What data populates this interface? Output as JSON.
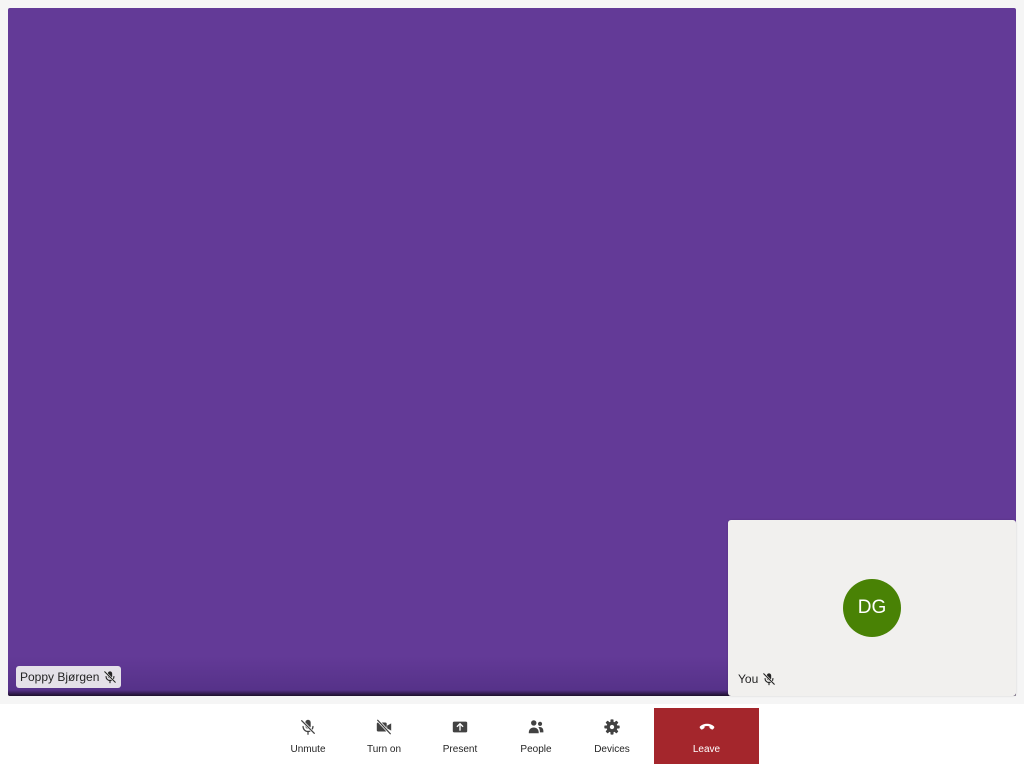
{
  "main_participant": {
    "name": "Poppy Bjørgen",
    "background_color": "#633a97",
    "mic_icon": "mic-off-icon"
  },
  "self_view": {
    "label": "You",
    "initials": "DG",
    "avatar_color": "#498205",
    "mic_icon": "mic-off-icon"
  },
  "toolbar": {
    "unmute_label": "Unmute",
    "camera_label": "Turn on",
    "present_label": "Present",
    "people_label": "People",
    "devices_label": "Devices",
    "leave_label": "Leave",
    "leave_color": "#a4262c"
  }
}
